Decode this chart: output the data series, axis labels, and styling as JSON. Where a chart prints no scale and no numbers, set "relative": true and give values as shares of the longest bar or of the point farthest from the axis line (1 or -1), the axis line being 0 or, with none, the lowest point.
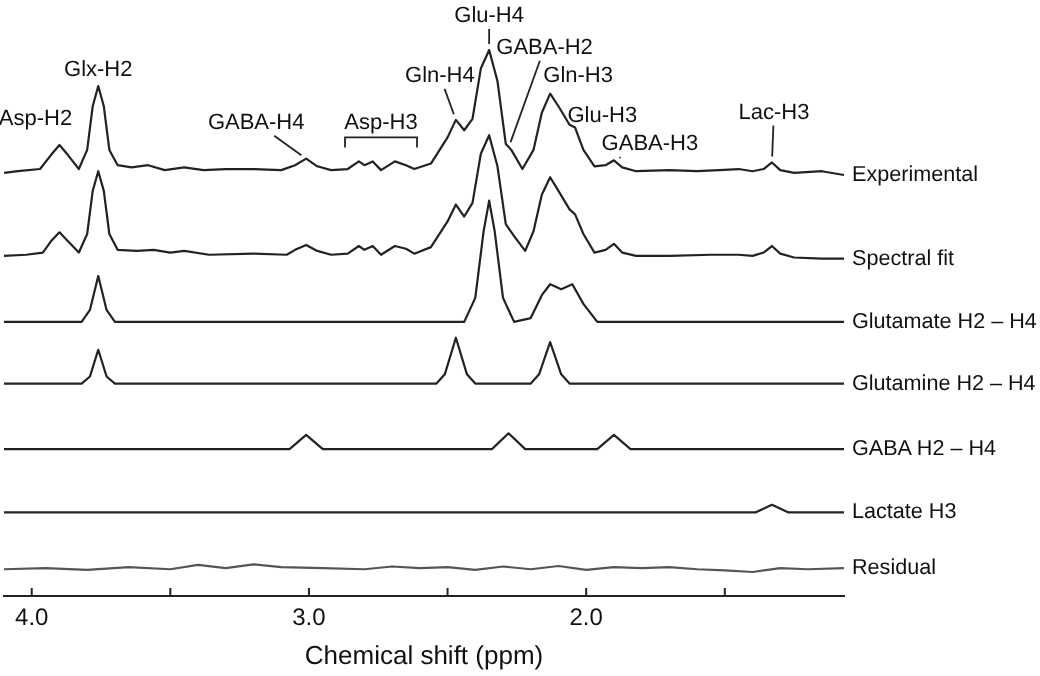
{
  "chart_data": {
    "type": "line",
    "relative": true,
    "xlim": [
      4.1,
      1.07
    ],
    "marker": "none",
    "tick_labels": "x",
    "xlabel": "Chemical shift (ppm)",
    "xticks": [
      {
        "value": 4,
        "label": "4.0"
      },
      {
        "value": 3.5,
        "label": null
      },
      {
        "value": 3,
        "label": "3.0"
      },
      {
        "value": 2.5,
        "label": null
      },
      {
        "value": 2,
        "label": "2.0"
      },
      {
        "value": 1.5,
        "label": null
      }
    ],
    "series": [
      {
        "name": "Experimental",
        "color": "#222222",
        "x": [
          4.1,
          4.05,
          3.97,
          3.93,
          3.9,
          3.87,
          3.83,
          3.8,
          3.78,
          3.76,
          3.74,
          3.72,
          3.69,
          3.64,
          3.58,
          3.52,
          3.45,
          3.38,
          3.3,
          3.2,
          3.1,
          3.05,
          3.01,
          2.97,
          2.92,
          2.86,
          2.82,
          2.8,
          2.77,
          2.74,
          2.69,
          2.65,
          2.62,
          2.56,
          2.5,
          2.47,
          2.44,
          2.41,
          2.38,
          2.35,
          2.32,
          2.29,
          2.27,
          2.23,
          2.19,
          2.16,
          2.13,
          2.1,
          2.06,
          2.04,
          2.01,
          1.97,
          1.93,
          1.9,
          1.87,
          1.82,
          1.7,
          1.6,
          1.52,
          1.45,
          1.4,
          1.36,
          1.33,
          1.3,
          1.25,
          1.15,
          1.07
        ],
        "values": [
          0.775,
          0.778,
          0.782,
          0.808,
          0.826,
          0.808,
          0.782,
          0.817,
          0.897,
          0.934,
          0.897,
          0.817,
          0.789,
          0.785,
          0.789,
          0.78,
          0.785,
          0.78,
          0.782,
          0.782,
          0.78,
          0.789,
          0.801,
          0.787,
          0.78,
          0.782,
          0.796,
          0.789,
          0.796,
          0.78,
          0.796,
          0.789,
          0.782,
          0.792,
          0.84,
          0.872,
          0.853,
          0.874,
          0.966,
          1,
          0.943,
          0.828,
          0.817,
          0.782,
          0.817,
          0.885,
          0.92,
          0.897,
          0.863,
          0.858,
          0.817,
          0.787,
          0.789,
          0.798,
          0.785,
          0.778,
          0.78,
          0.778,
          0.78,
          0.782,
          0.778,
          0.782,
          0.794,
          0.78,
          0.775,
          0.778,
          0.771
        ]
      },
      {
        "name": "Spectral fit",
        "color": "#222222",
        "x": [
          4.1,
          4.02,
          3.96,
          3.93,
          3.9,
          3.87,
          3.83,
          3.8,
          3.78,
          3.76,
          3.74,
          3.72,
          3.69,
          3.62,
          3.56,
          3.5,
          3.45,
          3.36,
          3.2,
          3.08,
          3.05,
          3.01,
          2.97,
          2.92,
          2.86,
          2.82,
          2.8,
          2.77,
          2.74,
          2.69,
          2.65,
          2.62,
          2.56,
          2.5,
          2.47,
          2.44,
          2.41,
          2.38,
          2.35,
          2.32,
          2.29,
          2.26,
          2.22,
          2.19,
          2.16,
          2.13,
          2.1,
          2.06,
          2.04,
          2.01,
          1.97,
          1.93,
          1.9,
          1.87,
          1.82,
          1.7,
          1.55,
          1.45,
          1.4,
          1.36,
          1.33,
          1.3,
          1.25,
          1.15,
          1.07
        ],
        "values": [
          0.623,
          0.625,
          0.629,
          0.65,
          0.666,
          0.65,
          0.629,
          0.663,
          0.742,
          0.778,
          0.742,
          0.663,
          0.634,
          0.632,
          0.634,
          0.629,
          0.632,
          0.625,
          0.627,
          0.625,
          0.634,
          0.643,
          0.632,
          0.625,
          0.627,
          0.641,
          0.634,
          0.641,
          0.625,
          0.641,
          0.636,
          0.627,
          0.639,
          0.686,
          0.717,
          0.695,
          0.72,
          0.81,
          0.844,
          0.787,
          0.681,
          0.659,
          0.632,
          0.668,
          0.735,
          0.767,
          0.742,
          0.708,
          0.699,
          0.663,
          0.629,
          0.634,
          0.645,
          0.629,
          0.623,
          0.623,
          0.625,
          0.625,
          0.623,
          0.629,
          0.641,
          0.627,
          0.62,
          0.618,
          0.618
        ]
      },
      {
        "name": "Glutamate H2 – H4",
        "color": "#222222",
        "x": [
          4.1,
          3.82,
          3.79,
          3.76,
          3.73,
          3.7,
          2.44,
          2.4,
          2.37,
          2.35,
          2.33,
          2.3,
          2.26,
          2.2,
          2.16,
          2.13,
          2.09,
          2.05,
          2.01,
          1.96,
          1.07
        ],
        "values": [
          0.502,
          0.502,
          0.524,
          0.586,
          0.524,
          0.502,
          0.502,
          0.546,
          0.668,
          0.724,
          0.668,
          0.546,
          0.502,
          0.509,
          0.551,
          0.571,
          0.562,
          0.571,
          0.535,
          0.502,
          0.502
        ]
      },
      {
        "name": "Glutamine H2 – H4",
        "color": "#222222",
        "x": [
          4.1,
          3.82,
          3.79,
          3.76,
          3.73,
          3.7,
          2.54,
          2.51,
          2.47,
          2.43,
          2.4,
          2.2,
          2.17,
          2.13,
          2.09,
          2.06,
          1.07
        ],
        "values": [
          0.389,
          0.389,
          0.402,
          0.451,
          0.402,
          0.389,
          0.389,
          0.406,
          0.473,
          0.406,
          0.389,
          0.389,
          0.406,
          0.465,
          0.406,
          0.389,
          0.389
        ]
      },
      {
        "name": "GABA H2 – H4",
        "color": "#222222",
        "x": [
          4.1,
          3.07,
          3.01,
          2.95,
          2.34,
          2.28,
          2.22,
          1.96,
          1.9,
          1.84,
          1.07
        ],
        "values": [
          0.269,
          0.269,
          0.295,
          0.269,
          0.269,
          0.298,
          0.269,
          0.269,
          0.295,
          0.269,
          0.269
        ]
      },
      {
        "name": "Lactate H3",
        "color": "#222222",
        "x": [
          4.1,
          1.39,
          1.33,
          1.27,
          1.07
        ],
        "values": [
          0.153,
          0.153,
          0.167,
          0.153,
          0.153
        ]
      },
      {
        "name": "Residual",
        "color": "#555555",
        "x": [
          4.1,
          3.95,
          3.8,
          3.65,
          3.5,
          3.4,
          3.3,
          3.2,
          3.1,
          2.95,
          2.8,
          2.7,
          2.6,
          2.5,
          2.4,
          2.3,
          2.2,
          2.1,
          2.0,
          1.9,
          1.8,
          1.7,
          1.6,
          1.5,
          1.4,
          1.3,
          1.2,
          1.07
        ],
        "values": [
          0.049,
          0.051,
          0.048,
          0.053,
          0.049,
          0.057,
          0.051,
          0.058,
          0.053,
          0.051,
          0.049,
          0.054,
          0.051,
          0.053,
          0.048,
          0.054,
          0.049,
          0.055,
          0.048,
          0.053,
          0.051,
          0.053,
          0.049,
          0.047,
          0.044,
          0.051,
          0.049,
          0.051
        ]
      }
    ],
    "annotations": [
      {
        "text": "Asp-H2",
        "x": 3.9,
        "y": 0.826
      },
      {
        "text": "Glx-H2",
        "x": 3.76,
        "y": 0.934
      },
      {
        "text": "GABA-H4",
        "x": 3.01,
        "y": 0.801
      },
      {
        "text": "Asp-H3",
        "x": 2.74,
        "y": 0.796
      },
      {
        "text": "Gln-H4",
        "x": 2.47,
        "y": 0.872
      },
      {
        "text": "Glu-H4",
        "x": 2.35,
        "y": 1
      },
      {
        "text": "GABA-H2",
        "x": 2.28,
        "y": 0.821
      },
      {
        "text": "Gln-H3",
        "x": 2.13,
        "y": 0.92
      },
      {
        "text": "Glu-H3",
        "x": 2.05,
        "y": 0.858
      },
      {
        "text": "GABA-H3",
        "x": 1.9,
        "y": 0.798
      },
      {
        "text": "Lac-H3",
        "x": 1.33,
        "y": 0.794
      }
    ]
  }
}
